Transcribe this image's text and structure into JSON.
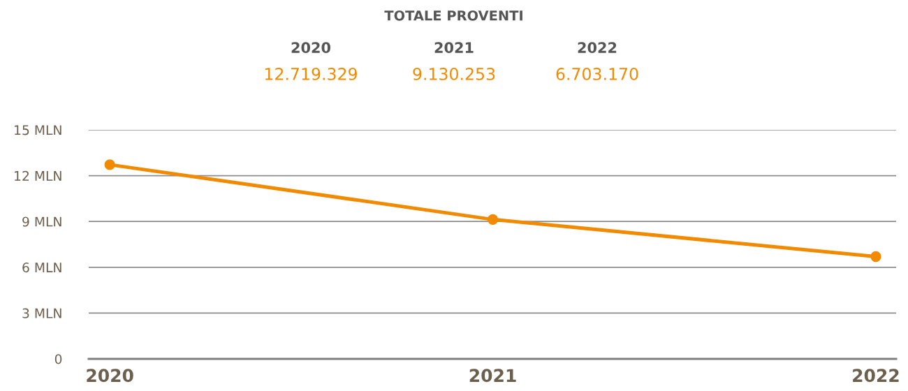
{
  "chart_data": {
    "type": "line",
    "title": "TOTALE PROVENTI",
    "categories": [
      "2020",
      "2021",
      "2022"
    ],
    "values": [
      12.72,
      9.13,
      6.7
    ],
    "color": "#f28a00",
    "annotations": [
      "12.719.329",
      "9.130.253",
      "6.703.170"
    ],
    "ylim": [
      0,
      15
    ],
    "yticks": [
      0,
      {
        "value": 3,
        "label": "3 MLN"
      },
      {
        "value": 6,
        "label": "6 MLN"
      },
      {
        "value": 9,
        "label": "9 MLN"
      },
      {
        "value": 12,
        "label": "12 MLN"
      },
      {
        "value": 15,
        "label": "15 MLN"
      }
    ],
    "grid": "y",
    "marker": "circle",
    "line_style": "solid"
  }
}
